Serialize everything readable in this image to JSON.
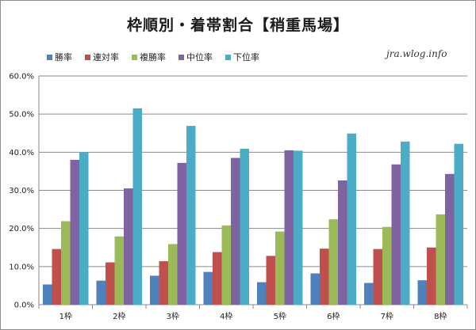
{
  "chart_data": {
    "type": "bar",
    "title": "枠順別・着帯割合【稍重馬場】",
    "xlabel": "",
    "ylabel": "",
    "categories": [
      "1枠",
      "2枠",
      "3枠",
      "4枠",
      "5枠",
      "6枠",
      "7枠",
      "8枠"
    ],
    "series": [
      {
        "name": "勝率",
        "color": "#4f81bd",
        "values": [
          5.3,
          6.3,
          7.6,
          8.6,
          5.9,
          8.2,
          5.7,
          6.4
        ]
      },
      {
        "name": "連対率",
        "color": "#c0504d",
        "values": [
          14.6,
          11.1,
          11.4,
          13.8,
          12.8,
          14.7,
          14.6,
          15.0
        ]
      },
      {
        "name": "複勝率",
        "color": "#9bbb59",
        "values": [
          21.9,
          17.9,
          15.9,
          20.8,
          19.2,
          22.4,
          20.4,
          23.7
        ]
      },
      {
        "name": "中位率",
        "color": "#8064a2",
        "values": [
          38.0,
          30.5,
          37.2,
          38.5,
          40.5,
          32.6,
          36.8,
          34.3
        ]
      },
      {
        "name": "下位率",
        "color": "#4bacc6",
        "values": [
          40.0,
          51.5,
          46.9,
          40.9,
          40.4,
          44.9,
          42.8,
          42.2
        ]
      }
    ],
    "ylim": [
      0,
      60
    ],
    "yticks": [
      "0.0%",
      "10.0%",
      "20.0%",
      "30.0%",
      "40.0%",
      "50.0%",
      "60.0%"
    ],
    "grid": true,
    "legend": "top-left"
  },
  "watermark": "jra.wlog.info"
}
